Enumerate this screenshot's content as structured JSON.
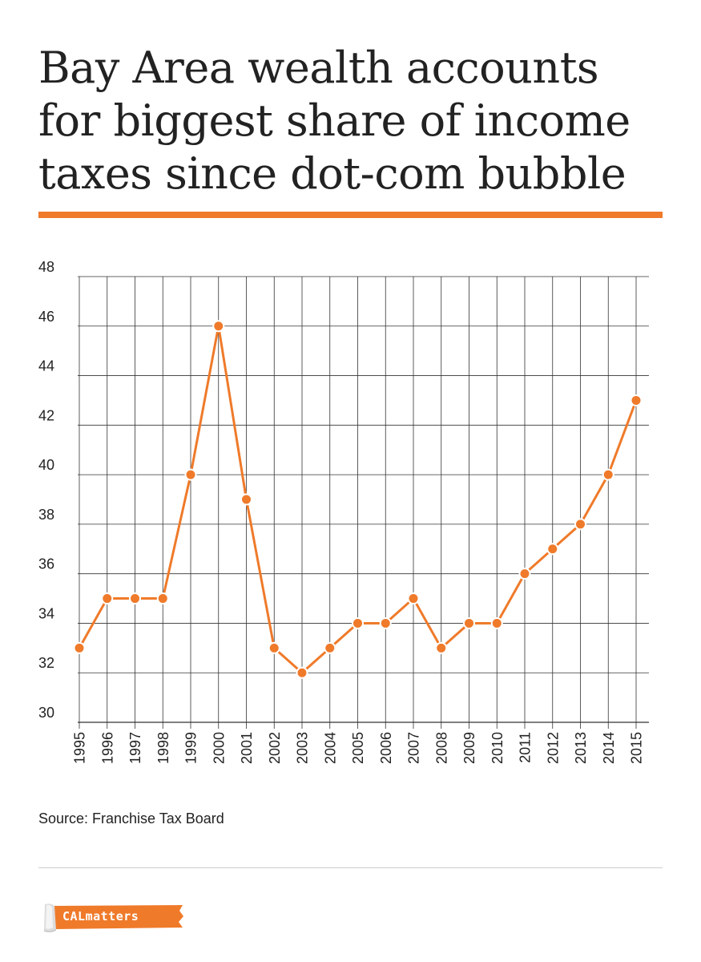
{
  "title": "Bay Area wealth accounts for biggest share of income taxes since dot-com bubble",
  "source": "Source: Franchise Tax Board",
  "logo_text": "CALmatters",
  "colors": {
    "accent": "#ef7a2a",
    "grid": "#333333",
    "text": "#222222",
    "rule": "#cccccc"
  },
  "chart_data": {
    "type": "line",
    "title": "",
    "xlabel": "",
    "ylabel": "",
    "x": [
      "1995",
      "1996",
      "1997",
      "1998",
      "1999",
      "2000",
      "2001",
      "2002",
      "2003",
      "2004",
      "2005",
      "2006",
      "2007",
      "2008",
      "2009",
      "2010",
      "2011",
      "2012",
      "2013",
      "2014",
      "2015"
    ],
    "series": [
      {
        "values": [
          33,
          35,
          35,
          35,
          40,
          46,
          39,
          33,
          32,
          33,
          34,
          34,
          35,
          33,
          34,
          34,
          36,
          37,
          38,
          40,
          43
        ]
      }
    ],
    "ylim": [
      30,
      48
    ],
    "yticks": [
      30,
      32,
      34,
      36,
      38,
      40,
      42,
      44,
      46,
      48
    ],
    "grid": true,
    "markers": true,
    "legend": "none"
  }
}
